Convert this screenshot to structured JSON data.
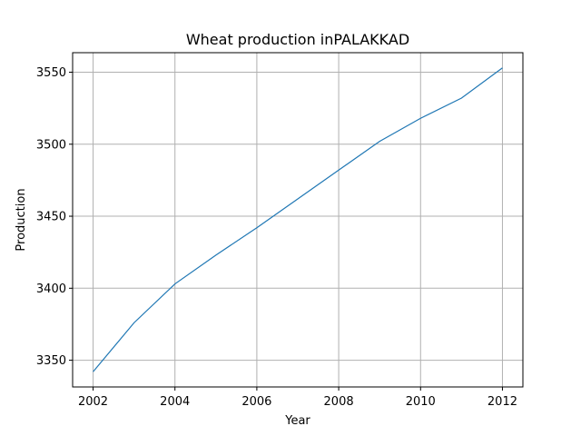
{
  "chart_data": {
    "type": "line",
    "title": "Wheat production inPALAKKAD",
    "xlabel": "Year",
    "ylabel": "Production",
    "x": [
      2002,
      2003,
      2004,
      2005,
      2006,
      2007,
      2008,
      2009,
      2010,
      2011,
      2012
    ],
    "series": [
      {
        "values": [
          3342,
          3376,
          3403,
          3423,
          3442,
          3462,
          3482,
          3502,
          3518,
          3532,
          3553
        ],
        "color": "#1f77b4"
      }
    ],
    "xlim": [
      2001.5,
      2012.5
    ],
    "ylim": [
      3331.45,
      3563.55
    ],
    "xticks": [
      2002,
      2004,
      2006,
      2008,
      2010,
      2012
    ],
    "yticks": [
      3350,
      3400,
      3450,
      3500,
      3550
    ],
    "grid": true
  }
}
